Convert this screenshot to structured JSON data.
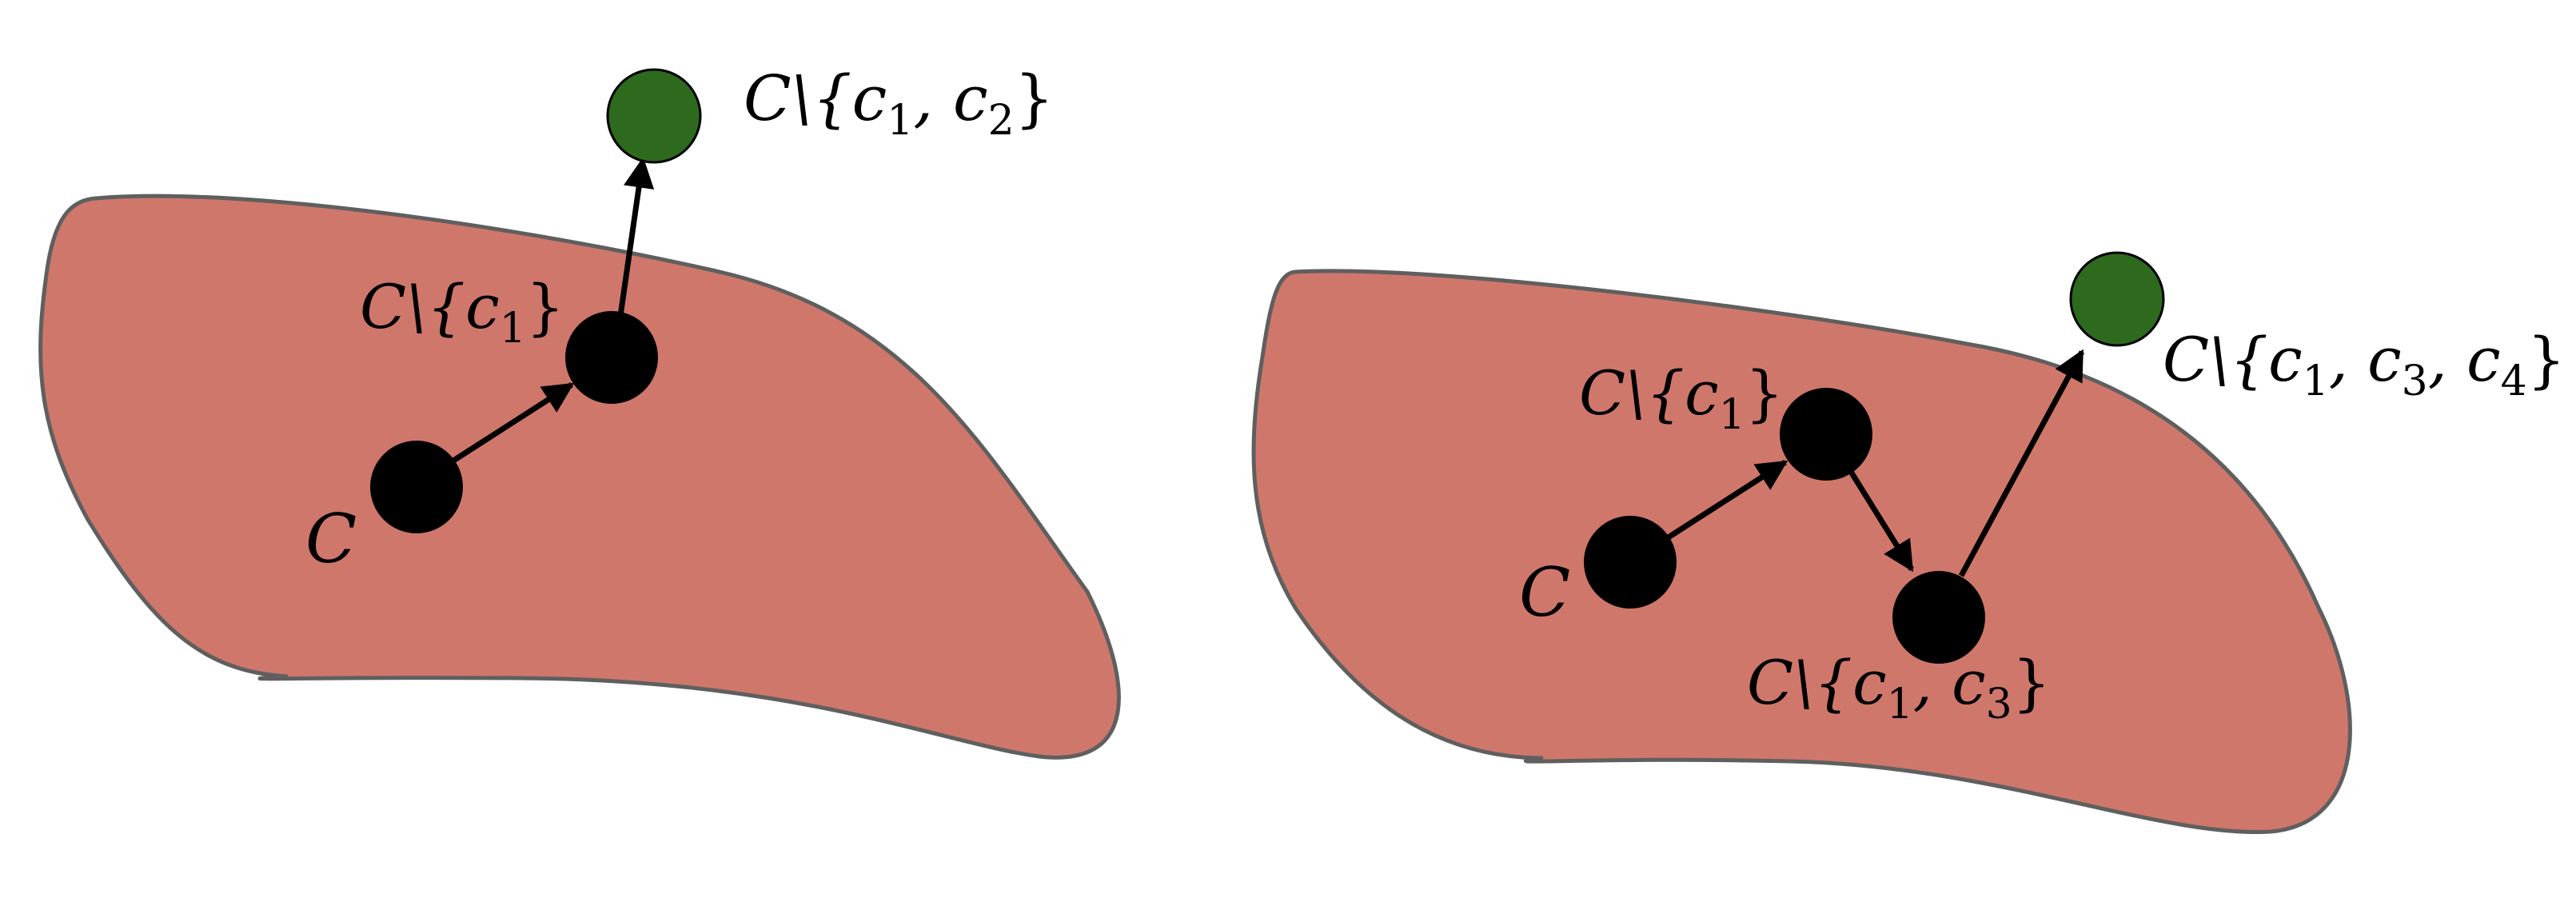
{
  "colors": {
    "region_fill": "#d0776c",
    "region_stroke": "#5f5f5f",
    "node_black": "#000000",
    "node_green": "#2d6a1e",
    "arrow": "#000000"
  },
  "left_diagram": {
    "labels": {
      "start": {
        "main": "C",
        "tail": ""
      },
      "step1": {
        "main": "C\\{c",
        "sub": "1",
        "tail": "}"
      },
      "target": {
        "main": "C\\{c",
        "sub1": "1",
        "mid": ", c",
        "sub2": "2",
        "tail": "}"
      }
    }
  },
  "right_diagram": {
    "labels": {
      "start": {
        "main": "C",
        "tail": ""
      },
      "step1": {
        "main": "C\\{c",
        "sub": "1",
        "tail": "}"
      },
      "step2": {
        "main": "C\\{c",
        "sub1": "1",
        "mid": ", c",
        "sub2": "3",
        "tail": "}"
      },
      "target": {
        "main": "C\\{c",
        "sub1": "1",
        "mid1": ", c",
        "sub2": "3",
        "mid2": ", c",
        "sub3": "4",
        "tail": "}"
      }
    }
  }
}
